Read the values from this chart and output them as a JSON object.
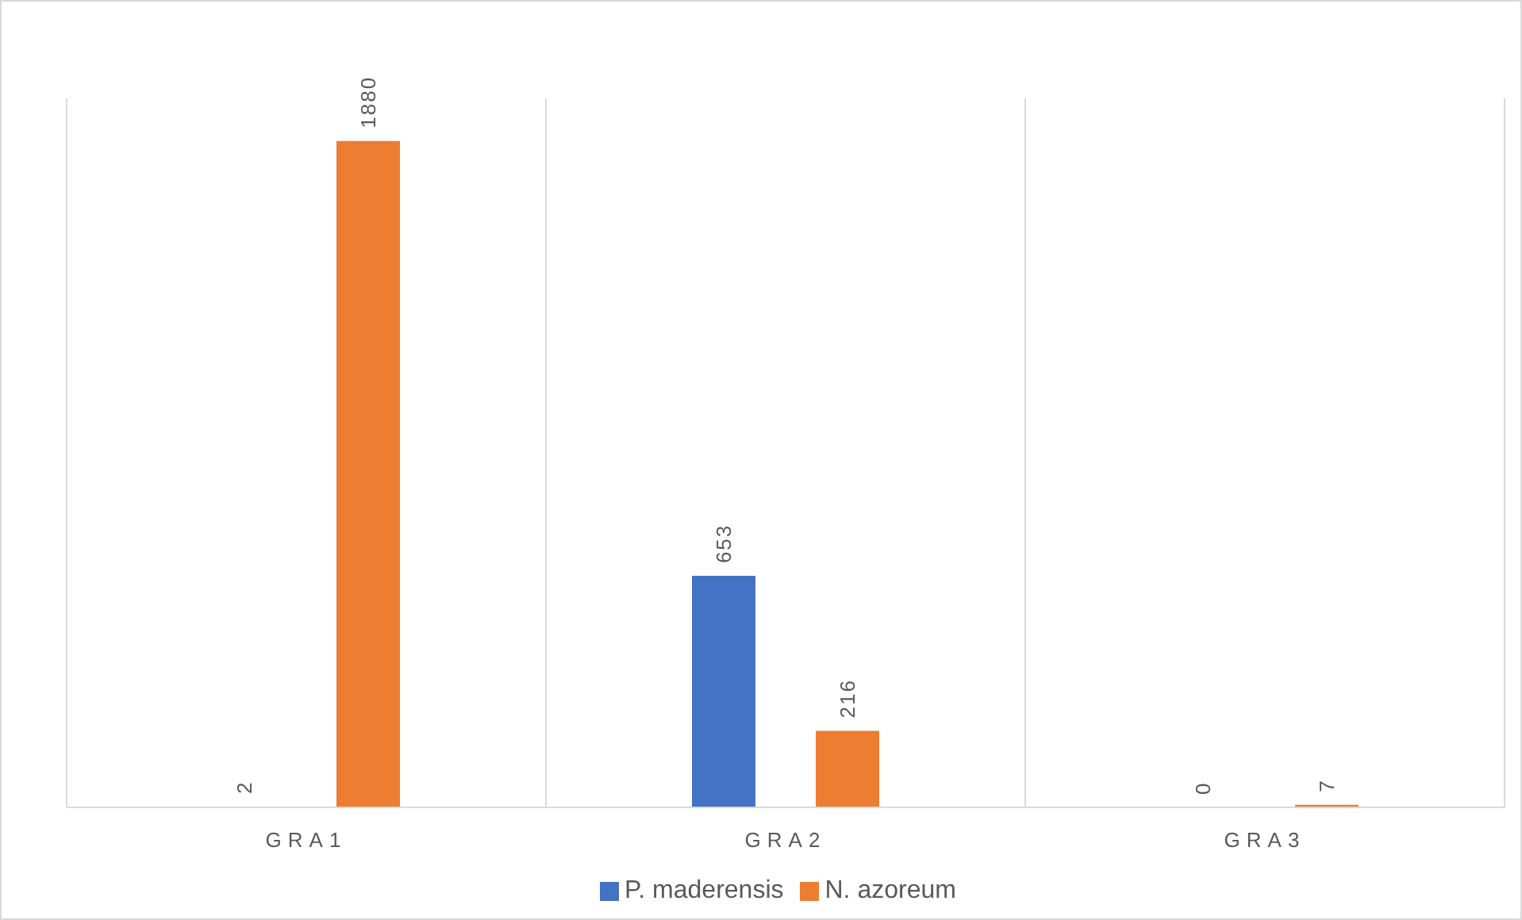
{
  "chart_data": {
    "type": "bar",
    "categories": [
      "GRA1",
      "GRA2",
      "GRA3"
    ],
    "series": [
      {
        "name": "P. maderensis",
        "color": "#4472c4",
        "values": [
          2,
          653,
          0
        ]
      },
      {
        "name": "N. azoreum",
        "color": "#ed7d31",
        "values": [
          1880,
          216,
          7
        ]
      }
    ],
    "data_labels": true,
    "grid": "x",
    "legend": "bottom"
  }
}
